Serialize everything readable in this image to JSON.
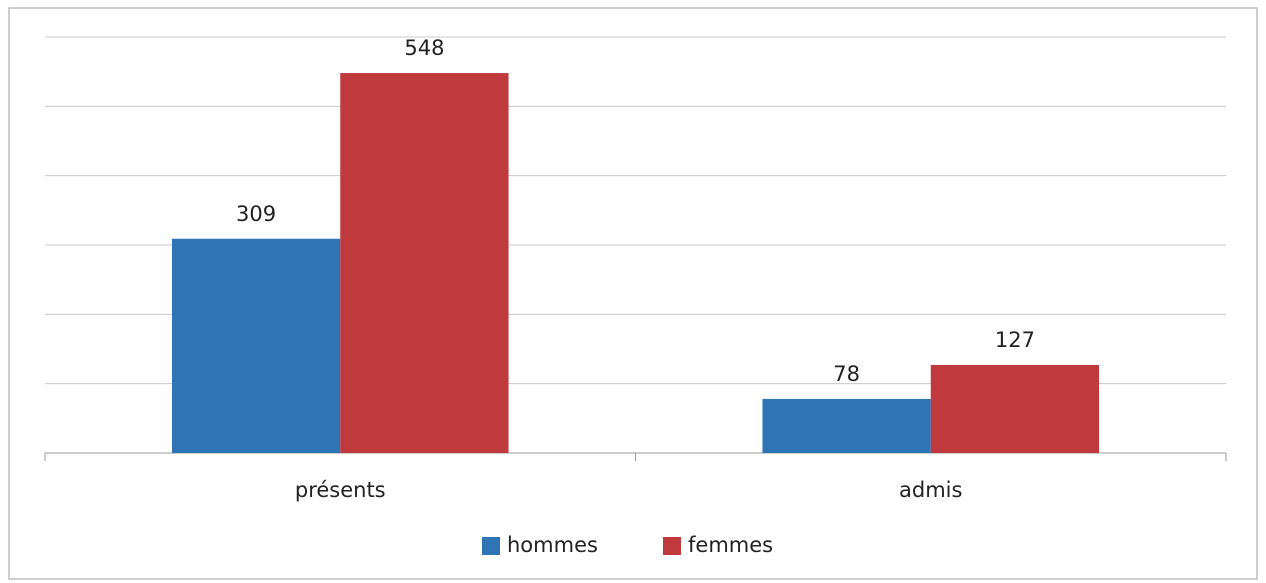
{
  "chart_data": {
    "type": "bar",
    "categories": [
      "présents",
      "admis"
    ],
    "series": [
      {
        "name": "hommes",
        "color": "#2f74b5",
        "values": [
          309,
          78
        ]
      },
      {
        "name": "femmes",
        "color": "#c0393c",
        "values": [
          548,
          127
        ]
      }
    ],
    "ylim": [
      0,
      600
    ],
    "yticks": [
      0,
      100,
      200,
      300,
      400,
      500,
      600
    ],
    "grid": true,
    "legend": "bottom"
  }
}
